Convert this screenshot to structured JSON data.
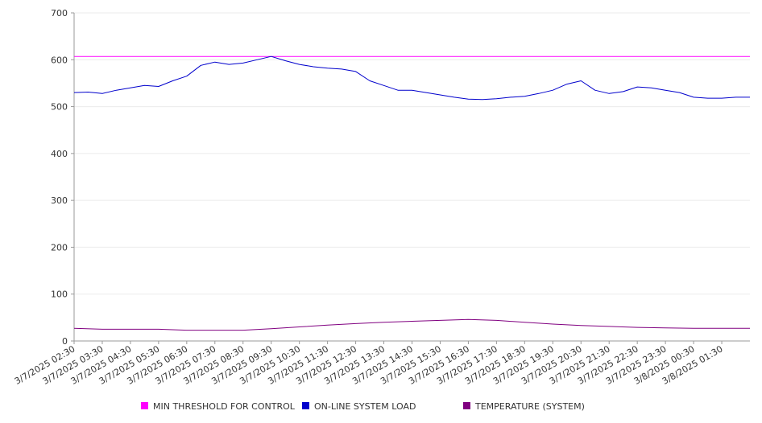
{
  "chart_data": {
    "type": "line",
    "title": "",
    "xlabel": "",
    "ylabel": "",
    "ylim": [
      0,
      700
    ],
    "yticks": [
      0,
      100,
      200,
      300,
      400,
      500,
      600,
      700
    ],
    "grid": true,
    "legend_position": "bottom",
    "x_tick_labels": [
      "3/7/2025 02:30",
      "3/7/2025 03:30",
      "3/7/2025 04:30",
      "3/7/2025 05:30",
      "3/7/2025 06:30",
      "3/7/2025 07:30",
      "3/7/2025 08:30",
      "3/7/2025 09:30",
      "3/7/2025 10:30",
      "3/7/2025 11:30",
      "3/7/2025 12:30",
      "3/7/2025 13:30",
      "3/7/2025 14:30",
      "3/7/2025 15:30",
      "3/7/2025 16:30",
      "3/7/2025 17:30",
      "3/7/2025 18:30",
      "3/7/2025 19:30",
      "3/7/2025 20:30",
      "3/7/2025 21:30",
      "3/7/2025 22:30",
      "3/7/2025 23:30",
      "3/8/2025 00:30",
      "3/8/2025 01:30"
    ],
    "x_range": [
      "3/7/2025 02:30",
      "3/8/2025 02:30"
    ],
    "series": [
      {
        "name": "MIN THRESHOLD FOR CONTROL",
        "color": "#ff00ff",
        "x": [
          "3/7/2025 02:30",
          "3/8/2025 02:30"
        ],
        "values": [
          607,
          607
        ]
      },
      {
        "name": "ON-LINE SYSTEM LOAD",
        "color": "#0000cc",
        "x": [
          "3/7/2025 02:30",
          "3/7/2025 03:00",
          "3/7/2025 03:30",
          "3/7/2025 04:00",
          "3/7/2025 04:30",
          "3/7/2025 05:00",
          "3/7/2025 05:30",
          "3/7/2025 06:00",
          "3/7/2025 06:30",
          "3/7/2025 07:00",
          "3/7/2025 07:30",
          "3/7/2025 08:00",
          "3/7/2025 08:30",
          "3/7/2025 09:00",
          "3/7/2025 09:30",
          "3/7/2025 10:00",
          "3/7/2025 10:30",
          "3/7/2025 11:00",
          "3/7/2025 11:30",
          "3/7/2025 12:00",
          "3/7/2025 12:30",
          "3/7/2025 13:00",
          "3/7/2025 13:30",
          "3/7/2025 14:00",
          "3/7/2025 14:30",
          "3/7/2025 15:00",
          "3/7/2025 15:30",
          "3/7/2025 16:00",
          "3/7/2025 16:30",
          "3/7/2025 17:00",
          "3/7/2025 17:30",
          "3/7/2025 18:00",
          "3/7/2025 18:30",
          "3/7/2025 19:00",
          "3/7/2025 19:30",
          "3/7/2025 20:00",
          "3/7/2025 20:30",
          "3/7/2025 21:00",
          "3/7/2025 21:30",
          "3/7/2025 22:00",
          "3/7/2025 22:30",
          "3/7/2025 23:00",
          "3/7/2025 23:30",
          "3/8/2025 00:00",
          "3/8/2025 00:30",
          "3/8/2025 01:00",
          "3/8/2025 01:30",
          "3/8/2025 02:00",
          "3/8/2025 02:30"
        ],
        "values": [
          530,
          531,
          528,
          535,
          540,
          545,
          543,
          555,
          565,
          588,
          595,
          590,
          593,
          600,
          607,
          598,
          590,
          585,
          582,
          580,
          575,
          555,
          545,
          535,
          535,
          530,
          525,
          520,
          516,
          515,
          517,
          520,
          522,
          528,
          535,
          548,
          555,
          535,
          528,
          532,
          542,
          540,
          535,
          530,
          520,
          518,
          518,
          520,
          520
        ]
      },
      {
        "name": "TEMPERATURE (SYSTEM)",
        "color": "#800080",
        "x": [
          "3/7/2025 02:30",
          "3/7/2025 03:30",
          "3/7/2025 04:30",
          "3/7/2025 05:30",
          "3/7/2025 06:30",
          "3/7/2025 07:30",
          "3/7/2025 08:30",
          "3/7/2025 09:30",
          "3/7/2025 10:30",
          "3/7/2025 11:30",
          "3/7/2025 12:30",
          "3/7/2025 13:30",
          "3/7/2025 14:30",
          "3/7/2025 15:30",
          "3/7/2025 16:30",
          "3/7/2025 17:30",
          "3/7/2025 18:30",
          "3/7/2025 19:30",
          "3/7/2025 20:30",
          "3/7/2025 21:30",
          "3/7/2025 22:30",
          "3/7/2025 23:30",
          "3/8/2025 00:30",
          "3/8/2025 01:30",
          "3/8/2025 02:30"
        ],
        "values": [
          27,
          25,
          25,
          25,
          23,
          23,
          23,
          26,
          30,
          34,
          37,
          40,
          42,
          44,
          46,
          44,
          40,
          36,
          33,
          31,
          29,
          28,
          27,
          27,
          27
        ]
      }
    ]
  }
}
